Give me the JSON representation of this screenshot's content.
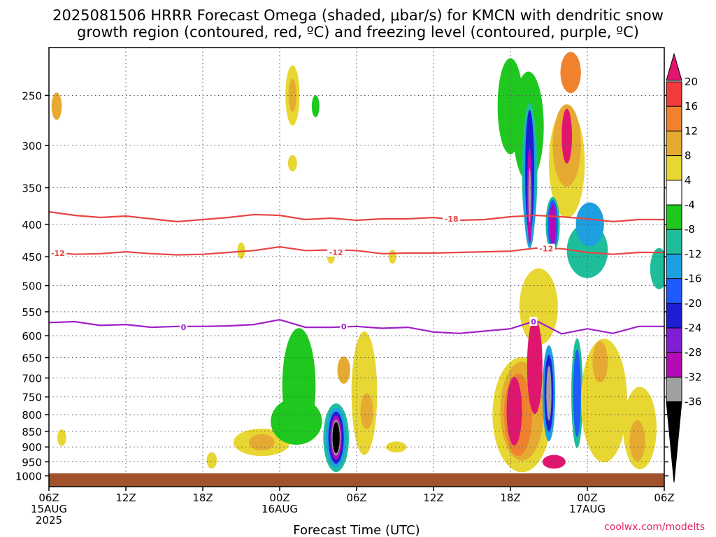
{
  "title_line1": "2025081506 HRRR Forecast Omega (shaded, μbar/s) for KMCN with dendritic snow",
  "title_line2": "growth region (contoured, red, ºC) and freezing level (contoured, purple, ºC)",
  "x_axis_label": "Forecast Time (UTC)",
  "watermark": "coolwx.com/modelts",
  "chart_data": {
    "type": "heatmap",
    "y_axis": {
      "label": "",
      "unit": "hPa",
      "scale": "log",
      "inverted": true,
      "range": [
        210,
        1040
      ],
      "ticks": [
        250,
        300,
        350,
        400,
        450,
        500,
        550,
        600,
        650,
        700,
        750,
        800,
        850,
        900,
        950,
        1000
      ]
    },
    "x_axis": {
      "range_hours": [
        0,
        48
      ],
      "ticks": [
        {
          "h": 0,
          "lines": [
            "06Z",
            "15AUG",
            "2025"
          ]
        },
        {
          "h": 6,
          "lines": [
            "12Z"
          ]
        },
        {
          "h": 12,
          "lines": [
            "18Z"
          ]
        },
        {
          "h": 18,
          "lines": [
            "00Z",
            "16AUG"
          ]
        },
        {
          "h": 24,
          "lines": [
            "06Z"
          ]
        },
        {
          "h": 30,
          "lines": [
            "12Z"
          ]
        },
        {
          "h": 36,
          "lines": [
            "18Z"
          ]
        },
        {
          "h": 42,
          "lines": [
            "00Z",
            "17AUG"
          ]
        },
        {
          "h": 48,
          "lines": [
            "06Z"
          ]
        }
      ]
    },
    "grid": true,
    "colorbar": {
      "labels": [
        "20",
        "16",
        "12",
        "8",
        "4",
        "-4",
        "-8",
        "-12",
        "-16",
        "-20",
        "-24",
        "-28",
        "-32",
        "-36"
      ],
      "colors": [
        "#e0156e",
        "#f03c3c",
        "#f0822d",
        "#e6aa32",
        "#e8d632",
        "#ffffff",
        "#1ec81e",
        "#1ebe9b",
        "#1ea0e0",
        "#1e5aff",
        "#1e1ed2",
        "#821ed2",
        "#b40ab4",
        "#a0a0a0",
        "#000000"
      ]
    },
    "shaded_features": [
      {
        "h": 0.6,
        "p": 260,
        "rh": 0.4,
        "rp": 1.0,
        "value": 8
      },
      {
        "h": 1.0,
        "p": 870,
        "rh": 0.35,
        "rp": 0.6,
        "value": 4
      },
      {
        "h": 12.7,
        "p": 945,
        "rh": 0.4,
        "rp": 0.6,
        "value": 4
      },
      {
        "h": 16.6,
        "p": 885,
        "rh": 2.2,
        "rp": 1.0,
        "value": 4
      },
      {
        "h": 16.6,
        "p": 885,
        "rh": 1.0,
        "rp": 0.6,
        "value": 8
      },
      {
        "h": 19.0,
        "p": 250,
        "rh": 0.55,
        "rp": 2.2,
        "value": 4
      },
      {
        "h": 19.0,
        "p": 250,
        "rh": 0.3,
        "rp": 1.2,
        "value": 8
      },
      {
        "h": 19.0,
        "p": 320,
        "rh": 0.35,
        "rp": 0.6,
        "value": 4
      },
      {
        "h": 20.8,
        "p": 260,
        "rh": 0.3,
        "rp": 0.8,
        "value": -4
      },
      {
        "h": 19.5,
        "p": 720,
        "rh": 1.3,
        "rp": 4.2,
        "value": -4
      },
      {
        "h": 19.3,
        "p": 820,
        "rh": 2.0,
        "rp": 1.7,
        "value": -4
      },
      {
        "h": 24.6,
        "p": 740,
        "rh": 1.0,
        "rp": 4.5,
        "value": 4
      },
      {
        "h": 23.0,
        "p": 680,
        "rh": 0.5,
        "rp": 1.0,
        "value": 8
      },
      {
        "h": 24.8,
        "p": 790,
        "rh": 0.5,
        "rp": 1.3,
        "value": 8
      },
      {
        "h": 22.4,
        "p": 870,
        "rh": 1.0,
        "rp": 2.5,
        "value": -8
      },
      {
        "h": 22.4,
        "p": 870,
        "rh": 0.8,
        "rp": 2.2,
        "value": -12
      },
      {
        "h": 22.4,
        "p": 870,
        "rh": 0.6,
        "rp": 1.9,
        "value": -20
      },
      {
        "h": 22.4,
        "p": 870,
        "rh": 0.45,
        "rp": 1.6,
        "value": -28
      },
      {
        "h": 22.4,
        "p": 870,
        "rh": 0.35,
        "rp": 1.3,
        "value": -32
      },
      {
        "h": 22.4,
        "p": 870,
        "rh": 0.28,
        "rp": 1.15,
        "value": -36
      },
      {
        "h": 27.1,
        "p": 900,
        "rh": 0.8,
        "rp": 0.4,
        "value": 4
      },
      {
        "h": 15.0,
        "p": 440,
        "rh": 0.3,
        "rp": 0.6,
        "value": 4
      },
      {
        "h": 22.0,
        "p": 450,
        "rh": 0.3,
        "rp": 0.5,
        "value": 4
      },
      {
        "h": 26.8,
        "p": 450,
        "rh": 0.3,
        "rp": 0.5,
        "value": 4
      },
      {
        "h": 36.0,
        "p": 260,
        "rh": 1.0,
        "rp": 3.5,
        "value": -4
      },
      {
        "h": 37.4,
        "p": 280,
        "rh": 1.2,
        "rp": 4.0,
        "value": -4
      },
      {
        "h": 40.4,
        "p": 320,
        "rh": 1.4,
        "rp": 4.0,
        "value": 4
      },
      {
        "h": 40.4,
        "p": 300,
        "rh": 1.1,
        "rp": 3.0,
        "value": 8
      },
      {
        "h": 40.7,
        "p": 230,
        "rh": 0.8,
        "rp": 1.5,
        "value": 12
      },
      {
        "h": 40.4,
        "p": 290,
        "rh": 0.4,
        "rp": 2.0,
        "value": 20
      },
      {
        "h": 37.5,
        "p": 330,
        "rh": 0.6,
        "rp": 5.0,
        "value": -8
      },
      {
        "h": 37.5,
        "p": 340,
        "rh": 0.5,
        "rp": 5.0,
        "value": -12
      },
      {
        "h": 37.5,
        "p": 330,
        "rh": 0.35,
        "rp": 4.5,
        "value": -20
      },
      {
        "h": 37.5,
        "p": 360,
        "rh": 0.2,
        "rp": 3.5,
        "value": -28
      },
      {
        "h": 37.5,
        "p": 360,
        "rh": 0.1,
        "rp": 2.0,
        "value": -32
      },
      {
        "h": 39.3,
        "p": 400,
        "rh": 0.55,
        "rp": 2.0,
        "value": -8
      },
      {
        "h": 39.3,
        "p": 400,
        "rh": 0.4,
        "rp": 1.8,
        "value": -16
      },
      {
        "h": 39.3,
        "p": 400,
        "rh": 0.25,
        "rp": 1.5,
        "value": -28
      },
      {
        "h": 42.0,
        "p": 440,
        "rh": 1.6,
        "rp": 2.0,
        "value": -8
      },
      {
        "h": 42.2,
        "p": 400,
        "rh": 1.1,
        "rp": 1.6,
        "value": -12
      },
      {
        "h": 38.2,
        "p": 540,
        "rh": 1.5,
        "rp": 2.8,
        "value": 4
      },
      {
        "h": 36.9,
        "p": 800,
        "rh": 2.3,
        "rp": 4.2,
        "value": 4
      },
      {
        "h": 36.9,
        "p": 790,
        "rh": 1.7,
        "rp": 3.6,
        "value": 8
      },
      {
        "h": 36.6,
        "p": 800,
        "rh": 1.1,
        "rp": 3.0,
        "value": 12
      },
      {
        "h": 36.3,
        "p": 790,
        "rh": 0.6,
        "rp": 2.5,
        "value": 20
      },
      {
        "h": 37.9,
        "p": 670,
        "rh": 0.6,
        "rp": 3.5,
        "value": 20
      },
      {
        "h": 39.4,
        "p": 950,
        "rh": 0.9,
        "rp": 0.5,
        "value": 20
      },
      {
        "h": 39.0,
        "p": 740,
        "rh": 0.5,
        "rp": 3.5,
        "value": -12
      },
      {
        "h": 39.0,
        "p": 740,
        "rh": 0.35,
        "rp": 2.8,
        "value": -20
      },
      {
        "h": 39.0,
        "p": 740,
        "rh": 0.2,
        "rp": 2.0,
        "value": -32
      },
      {
        "h": 41.2,
        "p": 740,
        "rh": 0.45,
        "rp": 4.0,
        "value": -8
      },
      {
        "h": 41.2,
        "p": 740,
        "rh": 0.3,
        "rp": 3.2,
        "value": -16
      },
      {
        "h": 43.3,
        "p": 760,
        "rh": 1.8,
        "rp": 4.5,
        "value": 4
      },
      {
        "h": 43.0,
        "p": 660,
        "rh": 0.6,
        "rp": 1.5,
        "value": 8
      },
      {
        "h": 46.1,
        "p": 840,
        "rh": 1.3,
        "rp": 3.0,
        "value": 4
      },
      {
        "h": 45.9,
        "p": 880,
        "rh": 0.6,
        "rp": 1.5,
        "value": 8
      },
      {
        "h": 47.6,
        "p": 470,
        "rh": 0.7,
        "rp": 1.5,
        "value": -8
      }
    ],
    "dgz_contours": [
      {
        "label": "-18",
        "color": "#e84545",
        "h": [
          0,
          2,
          4,
          6,
          8,
          10,
          12,
          14,
          16,
          18,
          20,
          22,
          24,
          26,
          28,
          30,
          32,
          34,
          36,
          38,
          40,
          42,
          44,
          46,
          48
        ],
        "p": [
          382,
          387,
          390,
          388,
          392,
          396,
          393,
          390,
          386,
          387,
          393,
          391,
          394,
          392,
          392,
          390,
          394,
          393,
          389,
          387,
          389,
          392,
          396,
          393,
          393
        ]
      },
      {
        "label": "-12",
        "color": "#e84545",
        "h": [
          0,
          2,
          4,
          6,
          8,
          10,
          12,
          14,
          16,
          18,
          20,
          22,
          24,
          26,
          28,
          30,
          32,
          34,
          36,
          38,
          40,
          42,
          44,
          46,
          48
        ],
        "p": [
          442,
          446,
          445,
          442,
          445,
          447,
          446,
          443,
          440,
          434,
          440,
          439,
          440,
          445,
          444,
          444,
          443,
          442,
          441,
          436,
          437,
          443,
          446,
          443,
          443
        ]
      }
    ],
    "freezing_level": {
      "label": "0",
      "color": "#a020c8",
      "h": [
        0,
        2,
        4,
        6,
        8,
        10,
        12,
        14,
        16,
        18,
        20,
        22,
        24,
        26,
        28,
        30,
        32,
        34,
        36,
        38,
        40,
        42,
        44,
        46,
        48
      ],
      "p": [
        572,
        570,
        578,
        576,
        582,
        580,
        580,
        579,
        576,
        566,
        582,
        582,
        580,
        584,
        582,
        592,
        595,
        590,
        585,
        568,
        596,
        585,
        595,
        580,
        580
      ]
    },
    "contour_labels": [
      {
        "h": 31.4,
        "p": 392,
        "text": "-18",
        "color": "#e84545"
      },
      {
        "h": 0.7,
        "p": 444,
        "text": "-12",
        "color": "#e84545"
      },
      {
        "h": 22.4,
        "p": 443,
        "text": "-12",
        "color": "#e84545"
      },
      {
        "h": 38.8,
        "p": 437,
        "text": "-12",
        "color": "#e84545"
      },
      {
        "h": 10.5,
        "p": 582,
        "text": "0",
        "color": "#a020c8"
      },
      {
        "h": 23.0,
        "p": 580,
        "text": "0",
        "color": "#a020c8"
      },
      {
        "h": 37.8,
        "p": 570,
        "text": "0",
        "color": "#a020c8"
      }
    ]
  }
}
